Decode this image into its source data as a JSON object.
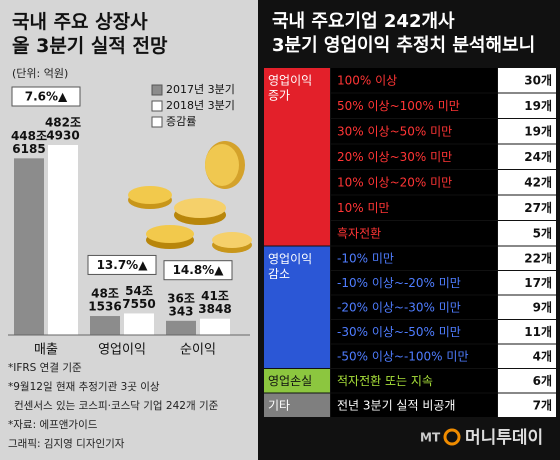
{
  "chart_data": {
    "type": "bar",
    "title": "국내 주요 상장사\n올 3분기 실적 전망",
    "unit": "(단위: 억원)",
    "categories": [
      "매출",
      "영업이익",
      "순이익"
    ],
    "series": [
      {
        "name": "2017년 3분기",
        "color": "#8c8c8c",
        "values": [
          4486185,
          481536,
          360343
        ],
        "value_labels": [
          "448조\n6185",
          "48조\n1536",
          "36조\n343"
        ]
      },
      {
        "name": "2018년 3분기",
        "color": "#ffffff",
        "values": [
          4824930,
          547550,
          413848
        ],
        "value_labels": [
          "482조\n4930",
          "54조\n7550",
          "41조\n3848"
        ]
      }
    ],
    "growth": {
      "name": "증감률",
      "color": "#ffffff",
      "values": [
        7.6,
        13.7,
        14.8
      ],
      "value_labels": [
        "7.6%▲",
        "13.7%▲",
        "14.8%▲"
      ]
    },
    "notes": [
      "*IFRS 연결 기준",
      "*9월12일 현재 추정기관 3곳 이상",
      "컨센서스 있는 코스피·코스닥 기업 242개 기준",
      "*자료: 에프앤가이드",
      "그래픽: 김지영 디자인기자"
    ]
  },
  "table": {
    "title": "국내 주요기업 242개사\n3분기 영업이익 추정치 분석해보니",
    "groups": [
      {
        "label": "영업이익\n증가",
        "color": "#e3202a",
        "label_color": "#ffffff",
        "text_color": "#ff3535",
        "rows": [
          [
            "100% 이상",
            "30개"
          ],
          [
            "50% 이상~100% 미만",
            "19개"
          ],
          [
            "30% 이상~50% 미만",
            "19개"
          ],
          [
            "20% 이상~30% 미만",
            "24개"
          ],
          [
            "10% 이상~20% 미만",
            "42개"
          ],
          [
            "10% 미만",
            "27개"
          ],
          [
            "흑자전환",
            "5개"
          ]
        ]
      },
      {
        "label": "영업이익\n감소",
        "color": "#2b57d6",
        "label_color": "#ffffff",
        "text_color": "#4f7dff",
        "rows": [
          [
            "-10% 미만",
            "22개"
          ],
          [
            "-10% 이상~-20% 미만",
            "17개"
          ],
          [
            "-20% 이상~-30% 미만",
            "9개"
          ],
          [
            "-30% 이상~-50% 미만",
            "11개"
          ],
          [
            "-50% 이상~-100% 미만",
            "4개"
          ]
        ]
      },
      {
        "label": "영업손실",
        "color": "#8cc63f",
        "label_color": "#111111",
        "text_color": "#a8e03a",
        "rows": [
          [
            "적자전환 또는 지속",
            "6개"
          ]
        ]
      },
      {
        "label": "기타",
        "color": "#7f7f7f",
        "label_color": "#ffffff",
        "text_color": "#ffffff",
        "rows": [
          [
            "전년 3분기 실적 비공개",
            "7개"
          ]
        ]
      }
    ]
  },
  "logo": {
    "mark": "MT",
    "name": "머니투데이"
  }
}
